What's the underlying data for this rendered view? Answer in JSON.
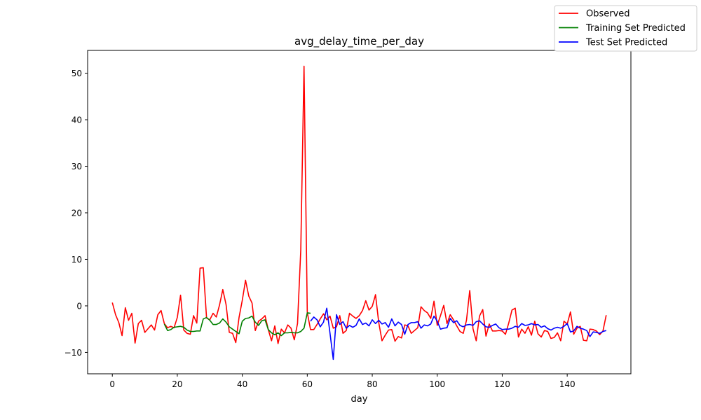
{
  "chart_data": {
    "type": "line",
    "title": "avg_delay_time_per_day",
    "xlabel": "day",
    "ylabel": "",
    "xlim": [
      -7.6,
      159.6
    ],
    "ylim": [
      -14.6,
      54.9
    ],
    "x_ticks": [
      0,
      20,
      40,
      60,
      80,
      100,
      120,
      140
    ],
    "y_ticks": [
      -10,
      0,
      10,
      20,
      30,
      40,
      50
    ],
    "grid": false,
    "legend_position": "top-right",
    "series": [
      {
        "name": "Observed",
        "color": "#ff0000",
        "x_start": 0,
        "values": [
          0.7,
          -1.9,
          -3.6,
          -6.4,
          -0.4,
          -3.1,
          -1.6,
          -8.0,
          -3.8,
          -3.1,
          -5.7,
          -4.9,
          -4.1,
          -5.2,
          -1.9,
          -1.0,
          -3.8,
          -4.7,
          -4.4,
          -4.7,
          -2.5,
          2.3,
          -5.2,
          -5.9,
          -6.1,
          -2.1,
          -3.7,
          8.1,
          8.2,
          -2.6,
          -3.0,
          -1.6,
          -2.4,
          0.2,
          3.5,
          0.3,
          -5.7,
          -5.9,
          -7.9,
          -2.5,
          1.2,
          5.5,
          2.1,
          0.6,
          -5.3,
          -3.3,
          -2.8,
          -2.1,
          -5.1,
          -7.5,
          -4.3,
          -8.1,
          -5.0,
          -5.8,
          -4.1,
          -4.8,
          -7.3,
          -3.8,
          12.0,
          51.5,
          -1.4,
          -5.1,
          -5.1,
          -4.0,
          -2.8,
          -1.7,
          -3.0,
          -2.2,
          -4.8,
          -4.5,
          -2.1,
          -5.9,
          -5.3,
          -1.6,
          -2.2,
          -2.7,
          -2.1,
          -1.0,
          1.1,
          -0.9,
          -0.1,
          2.4,
          -3.6,
          -7.5,
          -6.3,
          -5.2,
          -5.1,
          -7.6,
          -6.6,
          -6.9,
          -4.1,
          -4.3,
          -5.9,
          -5.3,
          -4.7,
          -0.2,
          -1.0,
          -1.5,
          -2.7,
          1.0,
          -4.2,
          -2.1,
          0.1,
          -3.8,
          -1.9,
          -3.0,
          -4.3,
          -5.5,
          -5.9,
          -3.1,
          3.3,
          -4.9,
          -7.5,
          -2.2,
          -0.8,
          -6.5,
          -3.9,
          -5.4,
          -5.4,
          -5.3,
          -5.4,
          -6.1,
          -3.7,
          -0.9,
          -0.5,
          -6.7,
          -5.0,
          -5.9,
          -4.5,
          -6.3,
          -3.3,
          -6.0,
          -6.7,
          -5.3,
          -5.5,
          -7.0,
          -6.8,
          -5.8,
          -7.5,
          -3.3,
          -3.9,
          -1.3,
          -6.1,
          -4.8,
          -4.4,
          -7.4,
          -7.5,
          -5.0,
          -5.1,
          -5.4,
          -6.2,
          -5.4,
          -2.0
        ]
      },
      {
        "name": "Training Set Predicted",
        "color": "#008000",
        "x_start": 16,
        "values": [
          -3.9,
          -5.3,
          -5.1,
          -4.6,
          -4.5,
          -4.4,
          -4.6,
          -5.2,
          -5.5,
          -5.5,
          -5.4,
          -5.4,
          -2.8,
          -2.5,
          -3.1,
          -4.0,
          -4.0,
          -3.7,
          -2.8,
          -3.5,
          -4.5,
          -5.0,
          -5.5,
          -6.0,
          -3.3,
          -2.7,
          -2.6,
          -2.2,
          -3.5,
          -4.2,
          -3.2,
          -3.0,
          -5.1,
          -5.8,
          -6.2,
          -5.8,
          -6.4,
          -5.8,
          -5.8,
          -5.7,
          -5.8,
          -5.8,
          -5.5,
          -4.8,
          -1.5,
          -1.6
        ]
      },
      {
        "name": "Test Set Predicted",
        "color": "#0000ff",
        "x_start": 61,
        "values": [
          -3.3,
          -2.4,
          -3.0,
          -4.5,
          -3.5,
          -0.5,
          -5.9,
          -11.5,
          -1.9,
          -4.0,
          -3.4,
          -4.8,
          -4.2,
          -4.6,
          -4.2,
          -2.8,
          -4.0,
          -3.7,
          -4.3,
          -3.0,
          -3.8,
          -3.1,
          -3.9,
          -3.6,
          -4.6,
          -2.8,
          -4.3,
          -3.5,
          -4.0,
          -6.1,
          -4.0,
          -3.6,
          -3.6,
          -3.4,
          -4.8,
          -4.1,
          -4.3,
          -3.9,
          -2.2,
          -3.3,
          -5.0,
          -4.8,
          -4.7,
          -2.7,
          -3.6,
          -3.2,
          -4.2,
          -4.5,
          -4.1,
          -4.0,
          -4.2,
          -3.4,
          -3.2,
          -3.9,
          -4.5,
          -4.6,
          -4.2,
          -3.9,
          -4.7,
          -5.1,
          -5.0,
          -5.0,
          -4.8,
          -4.4,
          -4.6,
          -3.8,
          -4.2,
          -4.1,
          -3.8,
          -4.1,
          -4.0,
          -4.6,
          -4.3,
          -4.9,
          -5.2,
          -4.8,
          -4.6,
          -4.8,
          -4.4,
          -3.8,
          -5.6,
          -5.4,
          -4.4,
          -4.8,
          -5.0,
          -5.3,
          -6.6,
          -5.6,
          -5.7,
          -5.9,
          -5.5,
          -5.3
        ]
      }
    ]
  }
}
